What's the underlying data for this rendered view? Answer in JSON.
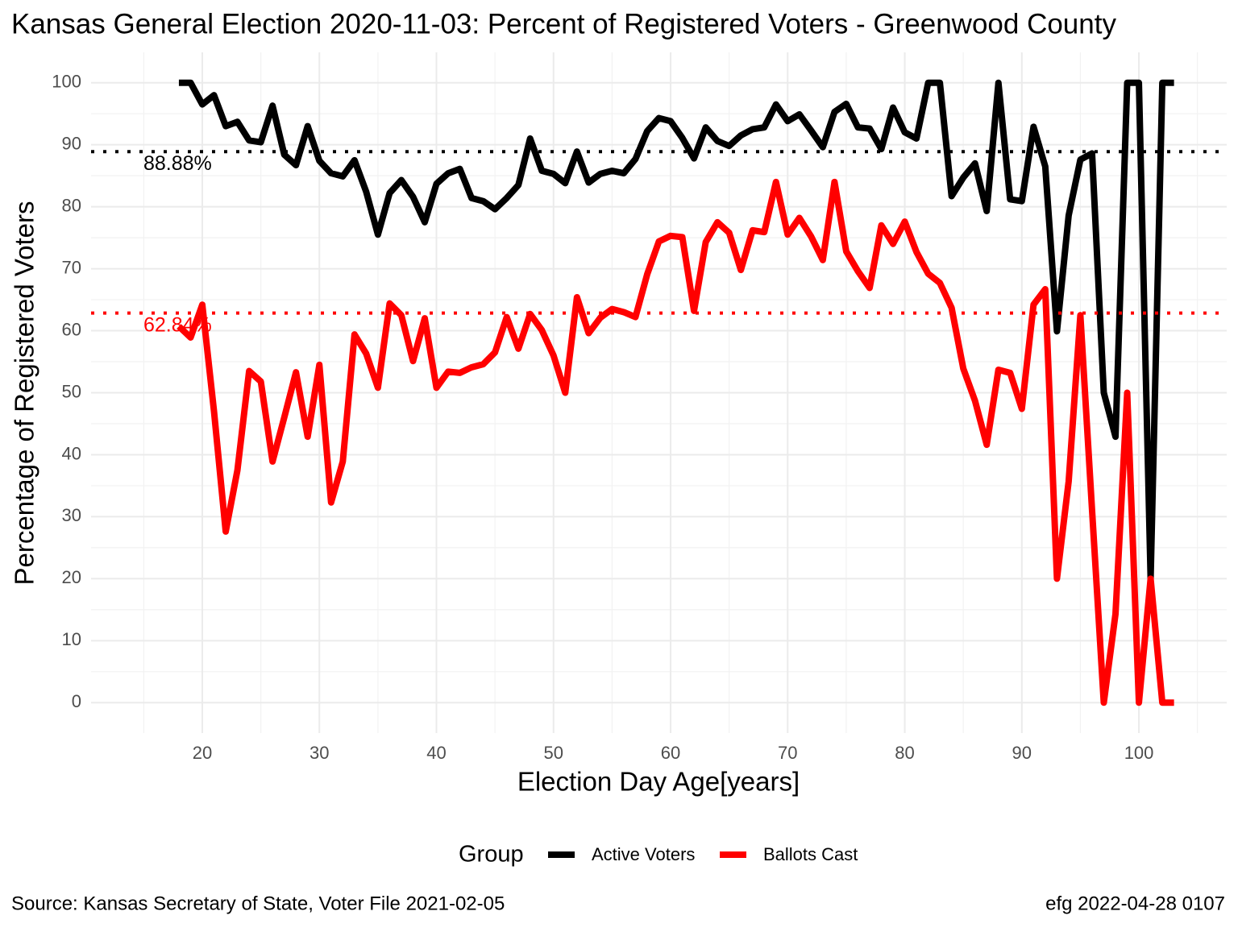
{
  "chart_data": {
    "type": "line",
    "title": "Kansas General Election 2020-11-03:  Percent of Registered Voters - Greenwood County",
    "x_label": "Election Day Age[years]",
    "y_label": "Percentage of Registered Voters",
    "x": [
      18,
      19,
      20,
      21,
      22,
      23,
      24,
      25,
      26,
      27,
      28,
      29,
      30,
      31,
      32,
      33,
      34,
      35,
      36,
      37,
      38,
      39,
      40,
      41,
      42,
      43,
      44,
      45,
      46,
      47,
      48,
      49,
      50,
      51,
      52,
      53,
      54,
      55,
      56,
      57,
      58,
      59,
      60,
      61,
      62,
      63,
      64,
      65,
      66,
      67,
      68,
      69,
      70,
      71,
      72,
      73,
      74,
      75,
      76,
      77,
      78,
      79,
      80,
      81,
      82,
      83,
      84,
      85,
      86,
      87,
      88,
      89,
      90,
      91,
      92,
      93,
      94,
      95,
      96,
      97,
      98,
      99,
      100,
      101,
      102,
      103
    ],
    "series": [
      {
        "name": "Active Voters",
        "color": "#000000",
        "values": [
          100,
          100,
          96.5,
          98,
          93,
          93.7,
          90.7,
          90.4,
          96.3,
          88.4,
          86.7,
          93,
          87.4,
          85.4,
          84.9,
          87.5,
          82.4,
          75.5,
          82.2,
          84.3,
          81.6,
          77.5,
          83.7,
          85.4,
          86.1,
          81.4,
          80.9,
          79.6,
          81.4,
          83.5,
          91,
          85.8,
          85.3,
          83.8,
          88.9,
          83.9,
          85.3,
          85.8,
          85.4,
          87.7,
          92.2,
          94.3,
          93.8,
          91.1,
          87.8,
          92.8,
          90.6,
          89.8,
          91.5,
          92.5,
          92.8,
          96.5,
          93.8,
          94.9,
          92.3,
          89.6,
          95.3,
          96.6,
          92.8,
          92.6,
          89.3,
          96,
          92,
          91,
          100,
          100,
          81.7,
          84.7,
          87,
          79.3,
          100,
          81.2,
          80.9,
          92.9,
          86.5,
          59.9,
          78.6,
          87.6,
          88.6,
          50,
          42.9,
          100,
          100,
          20,
          100,
          100
        ]
      },
      {
        "name": "Ballots Cast",
        "color": "#ff0000",
        "values": [
          60.7,
          58.9,
          64.2,
          47,
          27.6,
          37.5,
          53.5,
          51.8,
          38.9,
          46,
          53.3,
          42.9,
          54.5,
          32.3,
          38.9,
          59.4,
          56.3,
          50.8,
          64.4,
          62.5,
          55.1,
          62,
          50.8,
          53.4,
          53.2,
          54.1,
          54.6,
          56.5,
          62.2,
          57.1,
          62.7,
          60.1,
          56,
          50,
          65.4,
          59.6,
          62.1,
          63.5,
          63,
          62.2,
          69.1,
          74.4,
          75.3,
          75.1,
          63.2,
          74.3,
          77.5,
          75.8,
          69.8,
          76.2,
          75.9,
          84,
          75.5,
          78.2,
          75.2,
          71.4,
          84,
          72.8,
          69.6,
          66.9,
          77,
          74,
          77.6,
          72.7,
          69.2,
          67.7,
          63.7,
          53.9,
          48.7,
          41.6,
          53.7,
          53.2,
          47.4,
          64.2,
          66.7,
          20,
          35.7,
          62.5,
          31,
          0,
          14.3,
          50,
          0,
          20,
          0,
          0
        ]
      }
    ],
    "reference_lines": [
      {
        "value": 88.88,
        "label": "88.88%",
        "color": "#000000"
      },
      {
        "value": 62.84,
        "label": "62.84%",
        "color": "#ff0000"
      }
    ],
    "xlim": [
      10.5,
      107.5
    ],
    "ylim": [
      -4.9,
      104.9
    ],
    "xticks": [
      20,
      30,
      40,
      50,
      60,
      70,
      80,
      90,
      100
    ],
    "yticks": [
      0,
      10,
      20,
      30,
      40,
      50,
      60,
      70,
      80,
      90,
      100
    ],
    "grid": true,
    "legend_title": "Group",
    "legend_position": "bottom",
    "caption_left": "Source:  Kansas Secretary of State, Voter File  2021-02-05",
    "caption_right": "efg 2022-04-28 0107"
  }
}
